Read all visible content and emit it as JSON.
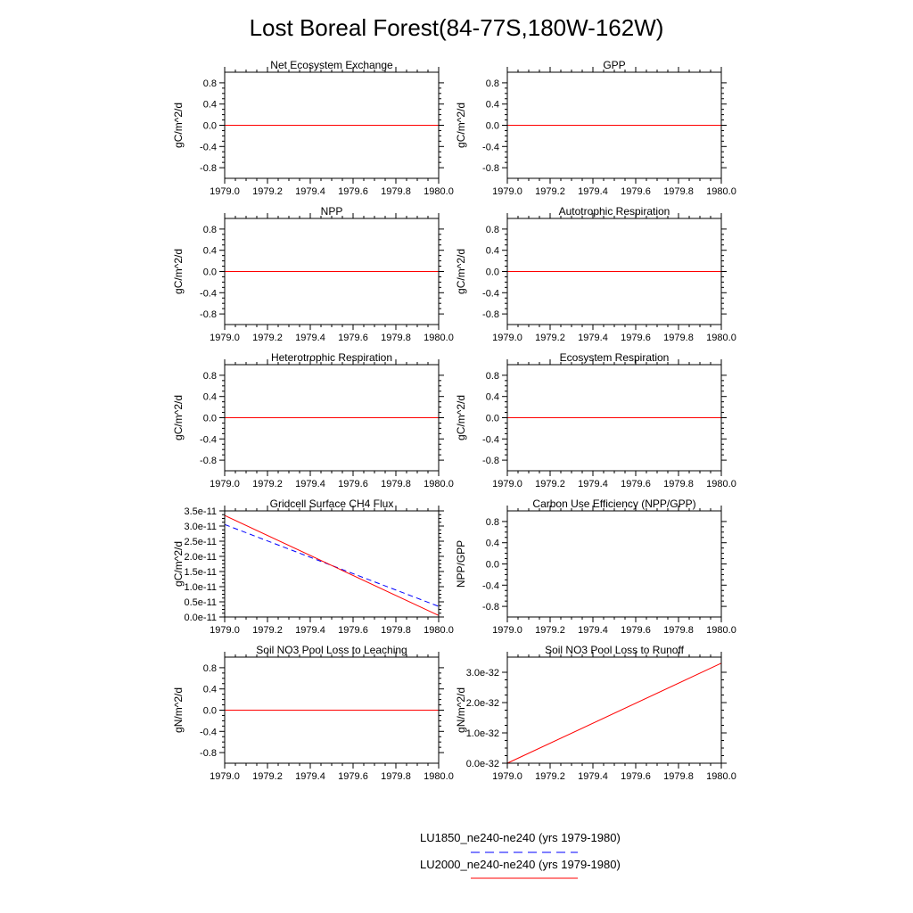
{
  "figure": {
    "title": "Lost Boreal Forest(84-77S,180W-162W)"
  },
  "legend": {
    "entries": [
      {
        "label": "LU1850_ne240-ne240 (yrs 1979-1980)",
        "color": "#0000ff",
        "style": "dashed"
      },
      {
        "label": "LU2000_ne240-ne240 (yrs 1979-1980)",
        "color": "#ff0000",
        "style": "solid"
      }
    ]
  },
  "chart_data": [
    {
      "type": "line",
      "title": "Net Ecosystem Exchange",
      "ylabel": "gC/m^2/d",
      "xlim": [
        1979.0,
        1980.0
      ],
      "ylim": [
        -1,
        1
      ],
      "xticks": [
        "1979.0",
        "1979.2",
        "1979.4",
        "1979.6",
        "1979.8",
        "1980.0"
      ],
      "xtickvals": [
        1979.0,
        1979.2,
        1979.4,
        1979.6,
        1979.8,
        1980.0
      ],
      "yticks": [
        "0.8",
        "0.4",
        "0.0",
        "-0.4",
        "-0.8"
      ],
      "ytickvals": [
        0.8,
        0.4,
        0.0,
        -0.4,
        -0.8
      ],
      "series": [
        {
          "x": [
            1979.0,
            1980.0
          ],
          "y": [
            0,
            0
          ]
        },
        {
          "x": [
            1979.0,
            1980.0
          ],
          "y": [
            0,
            0
          ]
        }
      ]
    },
    {
      "type": "line",
      "title": "GPP",
      "ylabel": "gC/m^2/d",
      "xlim": [
        1979.0,
        1980.0
      ],
      "ylim": [
        -1,
        1
      ],
      "xticks": [
        "1979.0",
        "1979.2",
        "1979.4",
        "1979.6",
        "1979.8",
        "1980.0"
      ],
      "xtickvals": [
        1979.0,
        1979.2,
        1979.4,
        1979.6,
        1979.8,
        1980.0
      ],
      "yticks": [
        "0.8",
        "0.4",
        "0.0",
        "-0.4",
        "-0.8"
      ],
      "ytickvals": [
        0.8,
        0.4,
        0.0,
        -0.4,
        -0.8
      ],
      "series": [
        {
          "x": [
            1979.0,
            1980.0
          ],
          "y": [
            0,
            0
          ]
        },
        {
          "x": [
            1979.0,
            1980.0
          ],
          "y": [
            0,
            0
          ]
        }
      ]
    },
    {
      "type": "line",
      "title": "NPP",
      "ylabel": "gC/m^2/d",
      "xlim": [
        1979.0,
        1980.0
      ],
      "ylim": [
        -1,
        1
      ],
      "xticks": [
        "1979.0",
        "1979.2",
        "1979.4",
        "1979.6",
        "1979.8",
        "1980.0"
      ],
      "xtickvals": [
        1979.0,
        1979.2,
        1979.4,
        1979.6,
        1979.8,
        1980.0
      ],
      "yticks": [
        "0.8",
        "0.4",
        "0.0",
        "-0.4",
        "-0.8"
      ],
      "ytickvals": [
        0.8,
        0.4,
        0.0,
        -0.4,
        -0.8
      ],
      "series": [
        {
          "x": [
            1979.0,
            1980.0
          ],
          "y": [
            0,
            0
          ]
        },
        {
          "x": [
            1979.0,
            1980.0
          ],
          "y": [
            0,
            0
          ]
        }
      ]
    },
    {
      "type": "line",
      "title": "Autotrophic Respiration",
      "ylabel": "gC/m^2/d",
      "xlim": [
        1979.0,
        1980.0
      ],
      "ylim": [
        -1,
        1
      ],
      "xticks": [
        "1979.0",
        "1979.2",
        "1979.4",
        "1979.6",
        "1979.8",
        "1980.0"
      ],
      "xtickvals": [
        1979.0,
        1979.2,
        1979.4,
        1979.6,
        1979.8,
        1980.0
      ],
      "yticks": [
        "0.8",
        "0.4",
        "0.0",
        "-0.4",
        "-0.8"
      ],
      "ytickvals": [
        0.8,
        0.4,
        0.0,
        -0.4,
        -0.8
      ],
      "series": [
        {
          "x": [
            1979.0,
            1980.0
          ],
          "y": [
            0,
            0
          ]
        },
        {
          "x": [
            1979.0,
            1980.0
          ],
          "y": [
            0,
            0
          ]
        }
      ]
    },
    {
      "type": "line",
      "title": "Heterotrophic Respiration",
      "ylabel": "gC/m^2/d",
      "xlim": [
        1979.0,
        1980.0
      ],
      "ylim": [
        -1,
        1
      ],
      "xticks": [
        "1979.0",
        "1979.2",
        "1979.4",
        "1979.6",
        "1979.8",
        "1980.0"
      ],
      "xtickvals": [
        1979.0,
        1979.2,
        1979.4,
        1979.6,
        1979.8,
        1980.0
      ],
      "yticks": [
        "0.8",
        "0.4",
        "0.0",
        "-0.4",
        "-0.8"
      ],
      "ytickvals": [
        0.8,
        0.4,
        0.0,
        -0.4,
        -0.8
      ],
      "series": [
        {
          "x": [
            1979.0,
            1980.0
          ],
          "y": [
            0,
            0
          ]
        },
        {
          "x": [
            1979.0,
            1980.0
          ],
          "y": [
            0,
            0
          ]
        }
      ]
    },
    {
      "type": "line",
      "title": "Ecosystem Respiration",
      "ylabel": "gC/m^2/d",
      "xlim": [
        1979.0,
        1980.0
      ],
      "ylim": [
        -1,
        1
      ],
      "xticks": [
        "1979.0",
        "1979.2",
        "1979.4",
        "1979.6",
        "1979.8",
        "1980.0"
      ],
      "xtickvals": [
        1979.0,
        1979.2,
        1979.4,
        1979.6,
        1979.8,
        1980.0
      ],
      "yticks": [
        "0.8",
        "0.4",
        "0.0",
        "-0.4",
        "-0.8"
      ],
      "ytickvals": [
        0.8,
        0.4,
        0.0,
        -0.4,
        -0.8
      ],
      "series": [
        {
          "x": [
            1979.0,
            1980.0
          ],
          "y": [
            0,
            0
          ]
        },
        {
          "x": [
            1979.0,
            1980.0
          ],
          "y": [
            0,
            0
          ]
        }
      ]
    },
    {
      "type": "line",
      "title": "Gridcell Surface CH4 Flux",
      "ylabel": "gC/m^2/d",
      "xlim": [
        1979.0,
        1980.0
      ],
      "ylim": [
        0,
        3.5e-11
      ],
      "xticks": [
        "1979.0",
        "1979.2",
        "1979.4",
        "1979.6",
        "1979.8",
        "1980.0"
      ],
      "xtickvals": [
        1979.0,
        1979.2,
        1979.4,
        1979.6,
        1979.8,
        1980.0
      ],
      "yticks": [
        "3.5e-11",
        "3.0e-11",
        "2.5e-11",
        "2.0e-11",
        "1.5e-11",
        "1.0e-11",
        "0.5e-11",
        "0.0e-11"
      ],
      "ytickvals": [
        3.5e-11,
        3e-11,
        2.5e-11,
        2e-11,
        1.5e-11,
        1e-11,
        5e-12,
        0.0
      ],
      "series": [
        {
          "x": [
            1979.0,
            1980.0
          ],
          "y": [
            3.05e-11,
            3.5e-12
          ]
        },
        {
          "x": [
            1979.0,
            1980.0
          ],
          "y": [
            3.35e-11,
            5e-13
          ]
        }
      ]
    },
    {
      "type": "line",
      "title": "Carbon Use Efficiency (NPP/GPP)",
      "ylabel": "NPP/GPP",
      "xlim": [
        1979.0,
        1980.0
      ],
      "ylim": [
        -1,
        1
      ],
      "xticks": [
        "1979.0",
        "1979.2",
        "1979.4",
        "1979.6",
        "1979.8",
        "1980.0"
      ],
      "xtickvals": [
        1979.0,
        1979.2,
        1979.4,
        1979.6,
        1979.8,
        1980.0
      ],
      "yticks": [
        "0.8",
        "0.4",
        "0.0",
        "-0.4",
        "-0.8"
      ],
      "ytickvals": [
        0.8,
        0.4,
        0.0,
        -0.4,
        -0.8
      ],
      "series": [
        {
          "x": [],
          "y": []
        },
        {
          "x": [],
          "y": []
        }
      ]
    },
    {
      "type": "line",
      "title": "Soil NO3 Pool Loss to Leaching",
      "ylabel": "gN/m^2/d",
      "xlim": [
        1979.0,
        1980.0
      ],
      "ylim": [
        -1,
        1
      ],
      "xticks": [
        "1979.0",
        "1979.2",
        "1979.4",
        "1979.6",
        "1979.8",
        "1980.0"
      ],
      "xtickvals": [
        1979.0,
        1979.2,
        1979.4,
        1979.6,
        1979.8,
        1980.0
      ],
      "yticks": [
        "0.8",
        "0.4",
        "0.0",
        "-0.4",
        "-0.8"
      ],
      "ytickvals": [
        0.8,
        0.4,
        0.0,
        -0.4,
        -0.8
      ],
      "series": [
        {
          "x": [
            1979.0,
            1980.0
          ],
          "y": [
            0,
            0
          ]
        },
        {
          "x": [
            1979.0,
            1980.0
          ],
          "y": [
            0,
            0
          ]
        }
      ]
    },
    {
      "type": "line",
      "title": "Soil NO3 Pool Loss to Runoff",
      "ylabel": "gN/m^2/d",
      "xlim": [
        1979.0,
        1980.0
      ],
      "ylim": [
        0,
        3.5e-32
      ],
      "xticks": [
        "1979.0",
        "1979.2",
        "1979.4",
        "1979.6",
        "1979.8",
        "1980.0"
      ],
      "xtickvals": [
        1979.0,
        1979.2,
        1979.4,
        1979.6,
        1979.8,
        1980.0
      ],
      "yticks": [
        "3.0e-32",
        "2.0e-32",
        "1.0e-32",
        "0.0e-32"
      ],
      "ytickvals": [
        3e-32,
        2e-32,
        1e-32,
        0.0
      ],
      "series": [
        {
          "x": [
            1979.0,
            1980.0
          ],
          "y": [
            0,
            0
          ]
        },
        {
          "x": [
            1979.0,
            1980.0
          ],
          "y": [
            0,
            3.3e-32
          ]
        }
      ]
    }
  ]
}
